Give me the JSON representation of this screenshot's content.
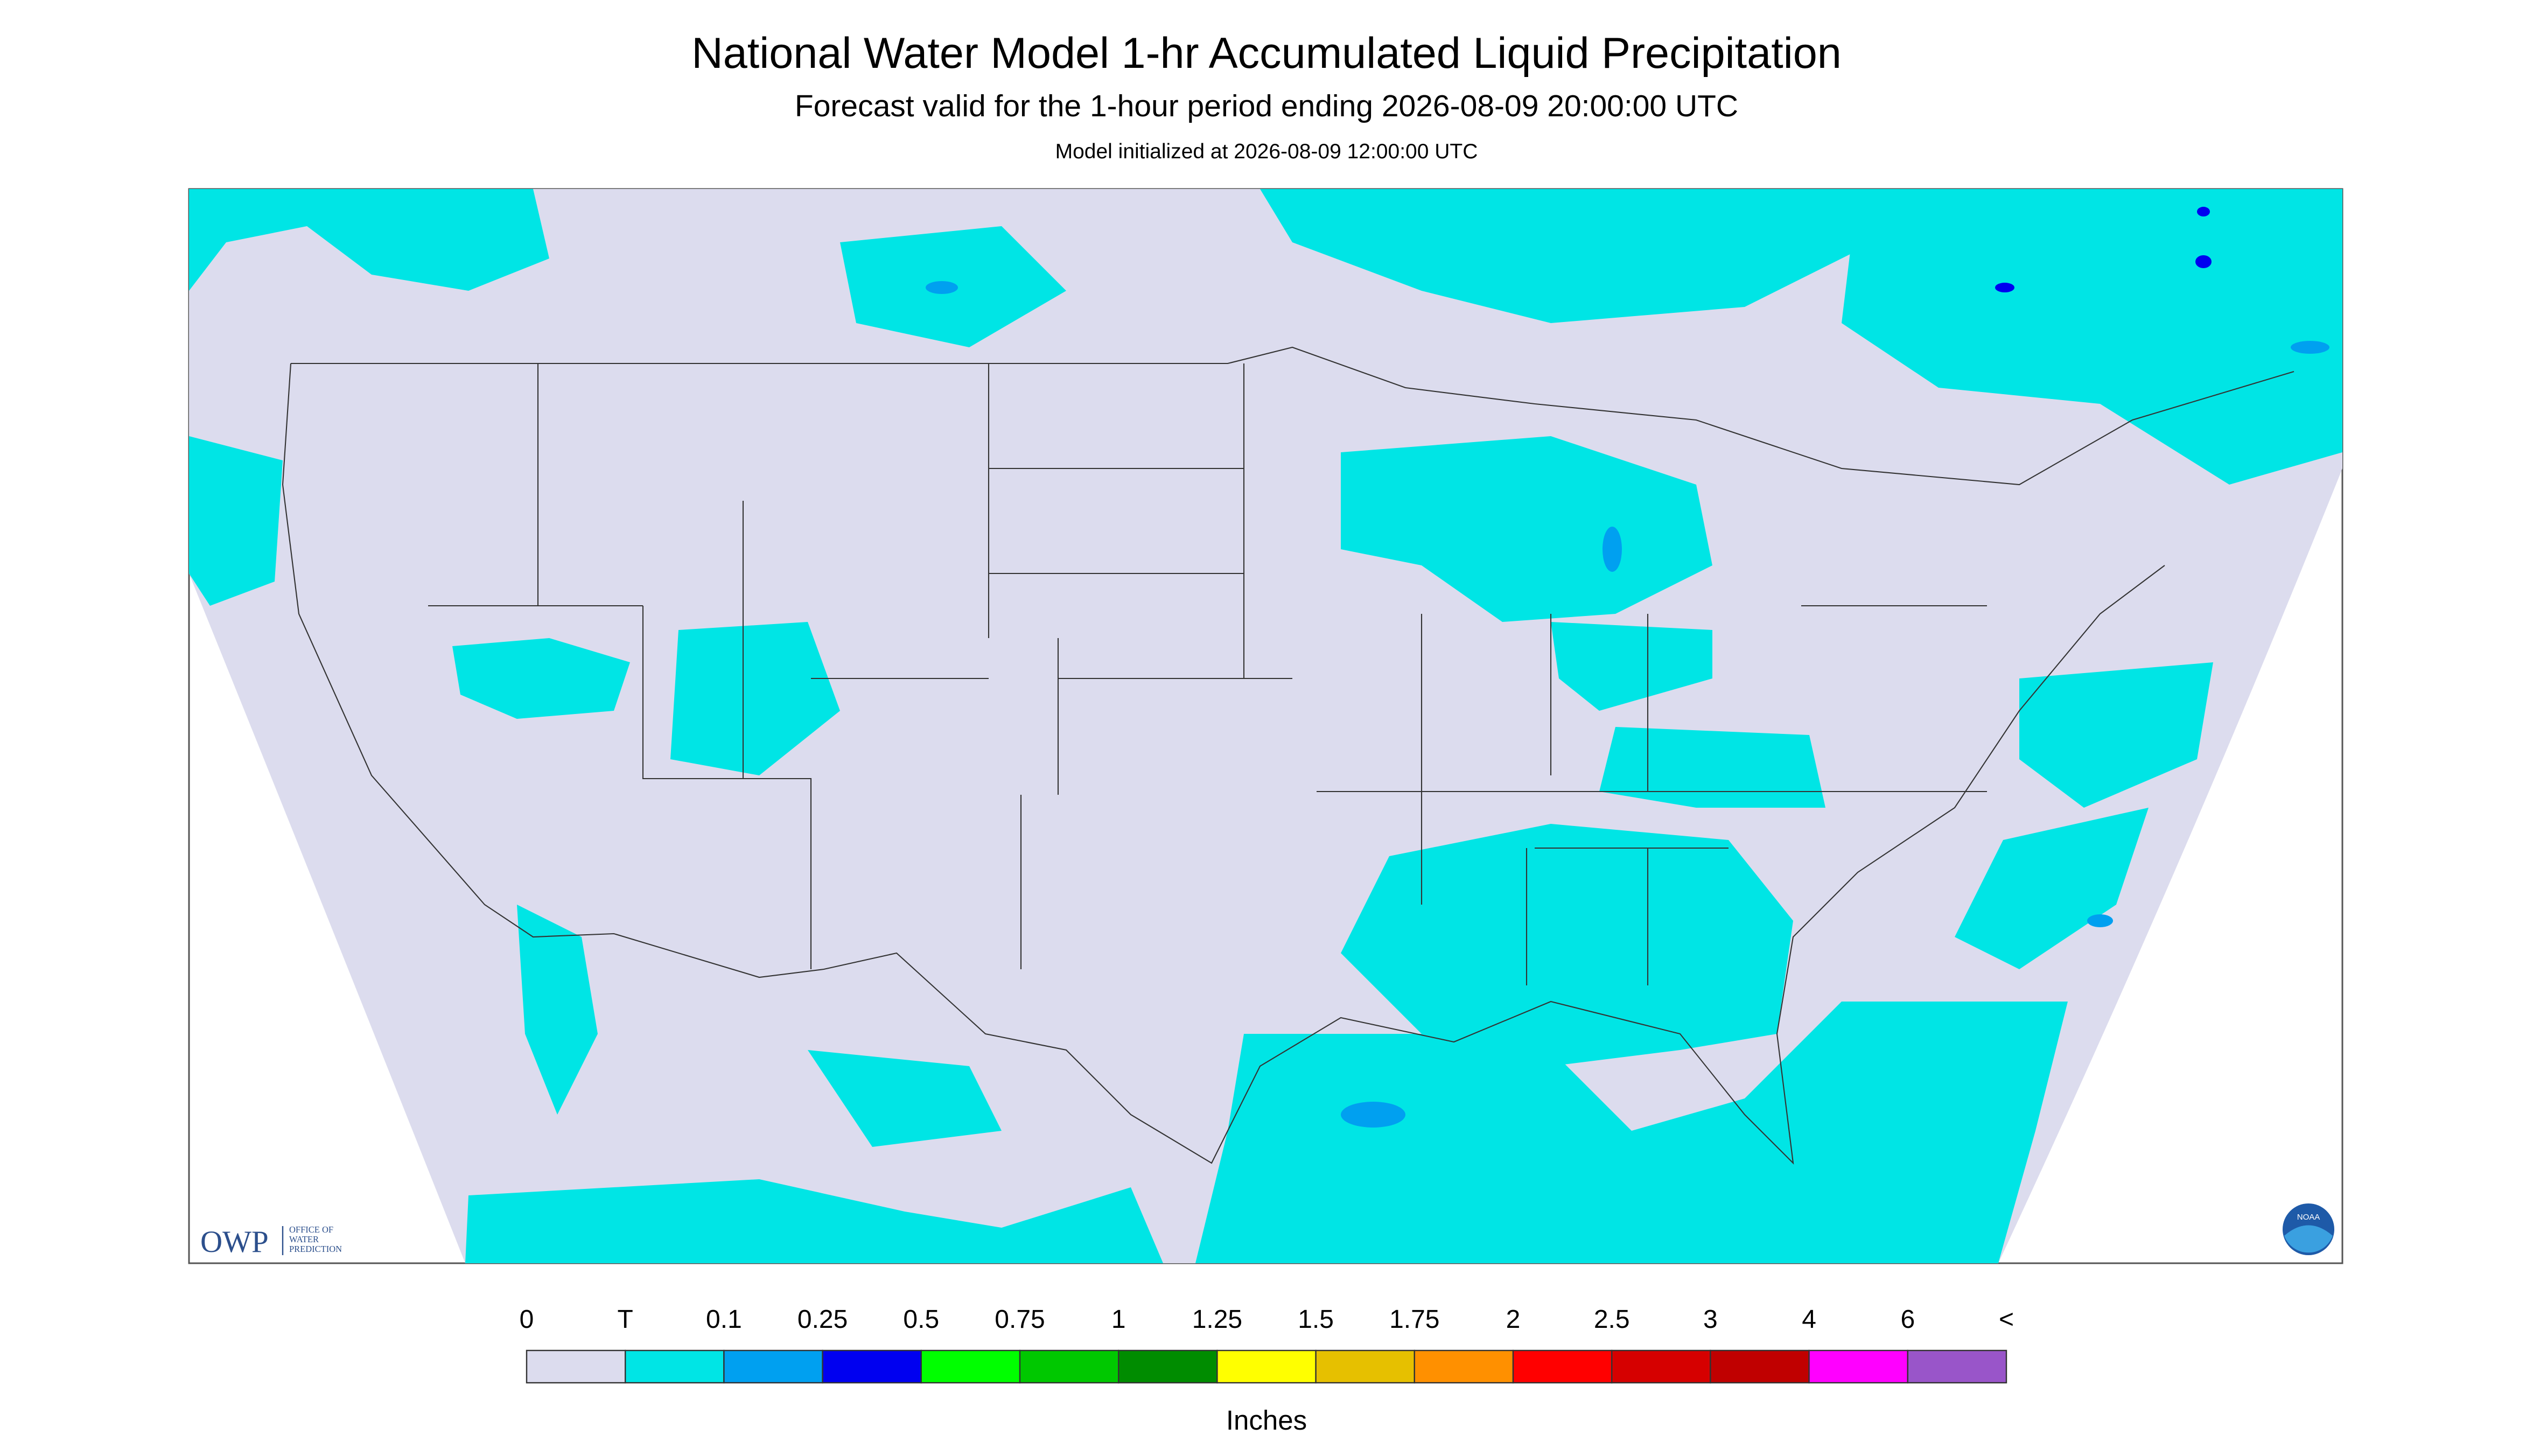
{
  "header": {
    "title": "National Water Model 1-hr Accumulated Liquid Precipitation",
    "subtitle": "Forecast valid for the 1-hour period ending 2026-08-09 20:00:00 UTC",
    "note": "Model initialized at 2026-08-09 12:00:00 UTC"
  },
  "legend": {
    "labels": [
      "0",
      "T",
      "0.1",
      "0.25",
      "0.5",
      "0.75",
      "1",
      "1.25",
      "1.5",
      "1.75",
      "2",
      "2.5",
      "3",
      "4",
      "6",
      "<"
    ],
    "colors": [
      "#dcdcee",
      "#00e5e5",
      "#00a0f0",
      "#0000f0",
      "#00ff00",
      "#00c800",
      "#008c00",
      "#ffff00",
      "#e6c000",
      "#ff9000",
      "#ff0000",
      "#d60000",
      "#c00000",
      "#ff00ff",
      "#9955c9"
    ],
    "unit": "Inches"
  },
  "logos": {
    "owp": "OWP",
    "owp_text": [
      "OFFICE OF",
      "WATER",
      "PREDICTION"
    ],
    "noaa": "NOAA"
  }
}
